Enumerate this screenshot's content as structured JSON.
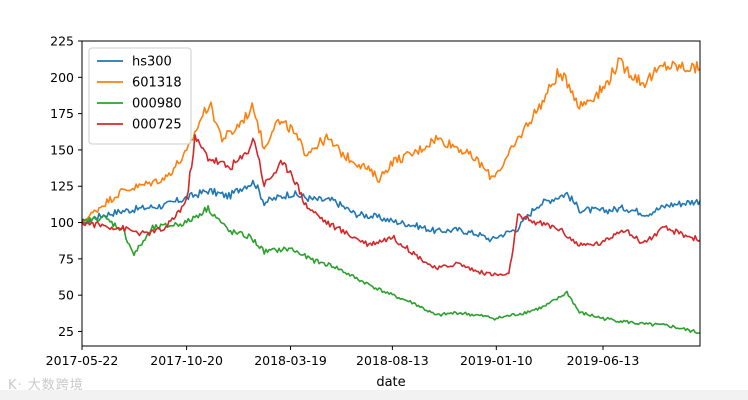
{
  "watermark": "K· 大数跨境",
  "chart_data": {
    "type": "line",
    "xlabel": "date",
    "ylabel": "",
    "ylim": [
      15,
      225
    ],
    "yticks": [
      25,
      50,
      75,
      100,
      125,
      150,
      175,
      200,
      225
    ],
    "x_start": "2017-05-22",
    "x_end": "2019-10-31",
    "xticks": [
      "2017-05-22",
      "2017-10-20",
      "2018-03-19",
      "2018-08-13",
      "2019-01-10",
      "2019-06-13"
    ],
    "grid": false,
    "legend_position": "upper-left",
    "series": [
      {
        "name": "hs300",
        "color": "#1f77b4",
        "points": [
          [
            "2017-05-22",
            100
          ],
          [
            "2017-06-20",
            105
          ],
          [
            "2017-07-20",
            108
          ],
          [
            "2017-08-20",
            110
          ],
          [
            "2017-09-20",
            112
          ],
          [
            "2017-10-20",
            117
          ],
          [
            "2017-11-20",
            122
          ],
          [
            "2017-12-20",
            118
          ],
          [
            "2018-01-10",
            125
          ],
          [
            "2018-01-26",
            128
          ],
          [
            "2018-02-09",
            114
          ],
          [
            "2018-03-19",
            120
          ],
          [
            "2018-04-20",
            116
          ],
          [
            "2018-05-20",
            115
          ],
          [
            "2018-06-20",
            106
          ],
          [
            "2018-07-20",
            104
          ],
          [
            "2018-08-13",
            101
          ],
          [
            "2018-09-15",
            98
          ],
          [
            "2018-10-15",
            94
          ],
          [
            "2018-11-15",
            95
          ],
          [
            "2018-12-15",
            92
          ],
          [
            "2019-01-03",
            88
          ],
          [
            "2019-01-10",
            90
          ],
          [
            "2019-02-10",
            96
          ],
          [
            "2019-03-10",
            112
          ],
          [
            "2019-04-10",
            118
          ],
          [
            "2019-04-22",
            120
          ],
          [
            "2019-05-10",
            109
          ],
          [
            "2019-06-13",
            108
          ],
          [
            "2019-07-15",
            110
          ],
          [
            "2019-08-15",
            106
          ],
          [
            "2019-09-15",
            112
          ],
          [
            "2019-10-31",
            115
          ]
        ]
      },
      {
        "name": "601318",
        "color": "#ff7f0e",
        "points": [
          [
            "2017-05-22",
            100
          ],
          [
            "2017-06-20",
            112
          ],
          [
            "2017-07-20",
            122
          ],
          [
            "2017-08-20",
            126
          ],
          [
            "2017-09-20",
            131
          ],
          [
            "2017-10-20",
            148
          ],
          [
            "2017-11-10",
            172
          ],
          [
            "2017-11-22",
            182
          ],
          [
            "2017-12-10",
            158
          ],
          [
            "2017-12-25",
            162
          ],
          [
            "2018-01-25",
            180
          ],
          [
            "2018-02-09",
            150
          ],
          [
            "2018-02-25",
            170
          ],
          [
            "2018-03-19",
            165
          ],
          [
            "2018-04-10",
            148
          ],
          [
            "2018-05-10",
            158
          ],
          [
            "2018-06-05",
            146
          ],
          [
            "2018-07-05",
            138
          ],
          [
            "2018-07-25",
            130
          ],
          [
            "2018-08-13",
            142
          ],
          [
            "2018-09-15",
            148
          ],
          [
            "2018-10-15",
            158
          ],
          [
            "2018-11-15",
            152
          ],
          [
            "2018-12-15",
            142
          ],
          [
            "2019-01-03",
            131
          ],
          [
            "2019-01-20",
            140
          ],
          [
            "2019-02-20",
            165
          ],
          [
            "2019-03-20",
            185
          ],
          [
            "2019-04-08",
            202
          ],
          [
            "2019-04-25",
            196
          ],
          [
            "2019-05-10",
            180
          ],
          [
            "2019-06-13",
            192
          ],
          [
            "2019-07-05",
            210
          ],
          [
            "2019-08-10",
            196
          ],
          [
            "2019-09-10",
            208
          ],
          [
            "2019-10-31",
            206
          ]
        ]
      },
      {
        "name": "000980",
        "color": "#2ca02c",
        "points": [
          [
            "2017-05-22",
            100
          ],
          [
            "2017-06-20",
            104
          ],
          [
            "2017-07-20",
            95
          ],
          [
            "2017-08-05",
            78
          ],
          [
            "2017-09-01",
            96
          ],
          [
            "2017-10-20",
            100
          ],
          [
            "2017-11-20",
            110
          ],
          [
            "2017-12-20",
            94
          ],
          [
            "2018-01-20",
            90
          ],
          [
            "2018-02-09",
            80
          ],
          [
            "2018-03-19",
            82
          ],
          [
            "2018-04-20",
            74
          ],
          [
            "2018-05-20",
            70
          ],
          [
            "2018-06-20",
            62
          ],
          [
            "2018-07-20",
            55
          ],
          [
            "2018-08-13",
            50
          ],
          [
            "2018-09-15",
            44
          ],
          [
            "2018-10-15",
            36
          ],
          [
            "2018-11-15",
            38
          ],
          [
            "2018-12-15",
            36
          ],
          [
            "2019-01-10",
            34
          ],
          [
            "2019-02-20",
            38
          ],
          [
            "2019-03-20",
            42
          ],
          [
            "2019-04-10",
            48
          ],
          [
            "2019-04-22",
            52
          ],
          [
            "2019-05-10",
            38
          ],
          [
            "2019-06-13",
            34
          ],
          [
            "2019-08-10",
            30
          ],
          [
            "2019-09-15",
            29
          ],
          [
            "2019-10-31",
            24
          ]
        ]
      },
      {
        "name": "000725",
        "color": "#d62728",
        "points": [
          [
            "2017-05-22",
            100
          ],
          [
            "2017-06-20",
            98
          ],
          [
            "2017-07-20",
            96
          ],
          [
            "2017-08-20",
            92
          ],
          [
            "2017-09-20",
            96
          ],
          [
            "2017-10-20",
            115
          ],
          [
            "2017-11-01",
            158
          ],
          [
            "2017-11-20",
            145
          ],
          [
            "2017-12-20",
            138
          ],
          [
            "2018-01-10",
            145
          ],
          [
            "2018-01-26",
            158
          ],
          [
            "2018-02-09",
            126
          ],
          [
            "2018-03-05",
            140
          ],
          [
            "2018-03-19",
            136
          ],
          [
            "2018-04-10",
            112
          ],
          [
            "2018-05-10",
            100
          ],
          [
            "2018-06-10",
            92
          ],
          [
            "2018-07-10",
            85
          ],
          [
            "2018-08-13",
            90
          ],
          [
            "2018-09-15",
            78
          ],
          [
            "2018-10-15",
            68
          ],
          [
            "2018-11-15",
            72
          ],
          [
            "2018-12-15",
            66
          ],
          [
            "2019-01-10",
            64
          ],
          [
            "2019-01-28",
            64
          ],
          [
            "2019-02-10",
            104
          ],
          [
            "2019-03-10",
            100
          ],
          [
            "2019-04-10",
            96
          ],
          [
            "2019-05-10",
            84
          ],
          [
            "2019-06-13",
            86
          ],
          [
            "2019-07-10",
            96
          ],
          [
            "2019-08-10",
            86
          ],
          [
            "2019-09-10",
            96
          ],
          [
            "2019-10-31",
            88
          ]
        ]
      }
    ]
  }
}
